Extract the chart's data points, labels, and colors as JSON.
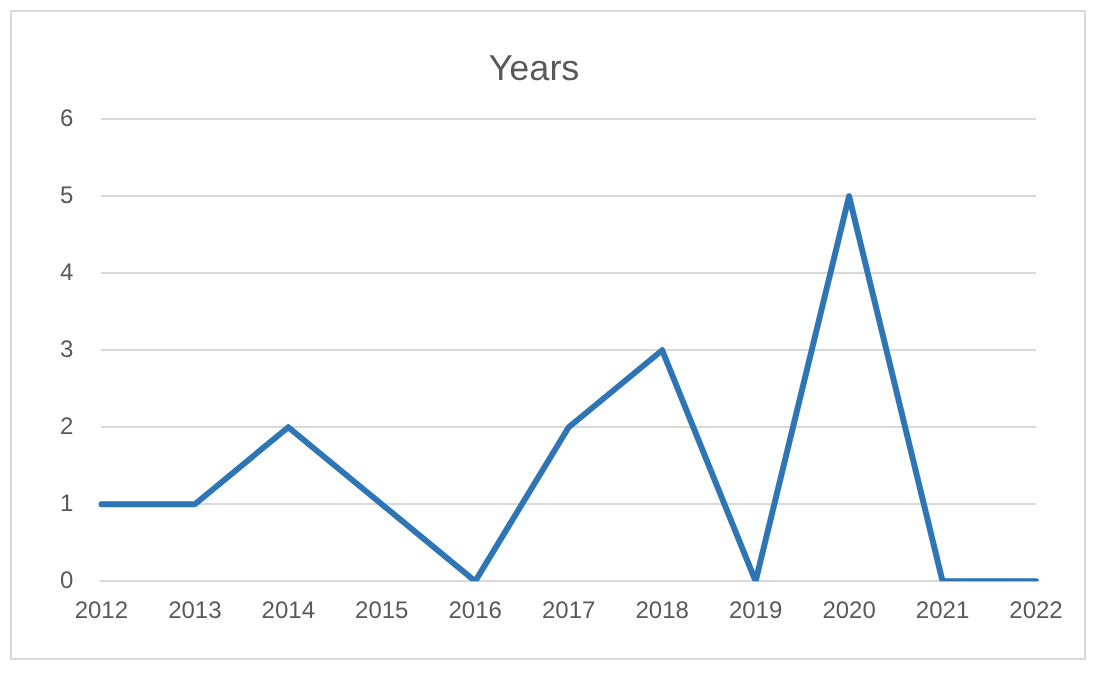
{
  "chart_data": {
    "type": "line",
    "title": "Years",
    "categories": [
      "2012",
      "2013",
      "2014",
      "2015",
      "2016",
      "2017",
      "2018",
      "2019",
      "2020",
      "2021",
      "2022"
    ],
    "series": [
      {
        "color": "#2e75b6",
        "values": [
          1,
          1,
          2,
          1,
          0,
          2,
          3,
          0,
          5,
          0,
          0
        ]
      }
    ],
    "ylim": [
      0,
      6
    ],
    "yticks": [
      0,
      1,
      2,
      3,
      4,
      5,
      6
    ],
    "grid": "y",
    "legend": false,
    "marker": "none",
    "line_style": "solid"
  }
}
